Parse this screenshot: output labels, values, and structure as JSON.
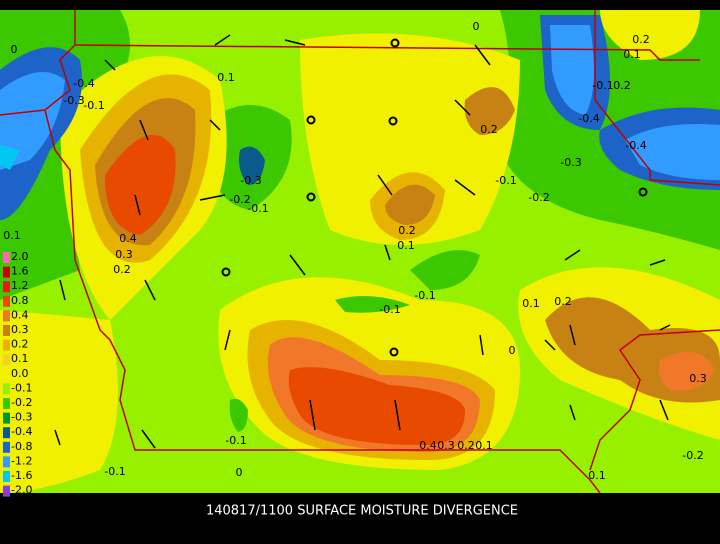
{
  "title": "140817/1100 SURFACE MOISTURE DIVERGENCE",
  "legend": {
    "items": [
      {
        "label": "2.0",
        "color": "#ff69b4"
      },
      {
        "label": "1.6",
        "color": "#c80000"
      },
      {
        "label": "1.2",
        "color": "#e41a1a"
      },
      {
        "label": "0.8",
        "color": "#e84a00"
      },
      {
        "label": "0.4",
        "color": "#f07828"
      },
      {
        "label": "0.3",
        "color": "#c88214"
      },
      {
        "label": "0.2",
        "color": "#e6b400"
      },
      {
        "label": "0.1",
        "color": "#f5d228"
      },
      {
        "label": "0.0",
        "color": "#f0f000"
      },
      {
        "label": "-0.1",
        "color": "#96f000"
      },
      {
        "label": "-0.2",
        "color": "#3cc800"
      },
      {
        "label": "-0.3",
        "color": "#009632"
      },
      {
        "label": "-0.4",
        "color": "#0a5a8c"
      },
      {
        "label": "-0.8",
        "color": "#1e64c8"
      },
      {
        "label": "-1.2",
        "color": "#329bff"
      },
      {
        "label": "-1.6",
        "color": "#00c8f0"
      },
      {
        "label": "-2.0",
        "color": "#8c3cdc"
      }
    ]
  },
  "contour_labels": [
    "0",
    "0",
    "0.2",
    "0.1",
    "-0.4",
    "-0.3",
    "-0.1",
    "0.1",
    "-0.1",
    "0.2",
    "0.2",
    "-0.4",
    "-0.4",
    "-0.3",
    "-0.3",
    "-0.2",
    "-0.1",
    "-0.1",
    "-0.2",
    "0.4",
    "0.3",
    "0.2",
    "0.2",
    "0.1",
    "-0.1",
    "-0.1",
    "0.1",
    "0.2",
    "0",
    "0.3",
    "0.4",
    "0.3",
    "0.2",
    "0.1",
    "-0.1",
    "0",
    "-0.1",
    "0.1",
    "-0.2",
    "0.1"
  ]
}
